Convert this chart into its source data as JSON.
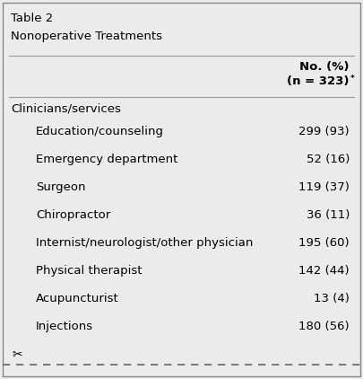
{
  "title_line1": "Table 2",
  "title_line2": "Nonoperative Treatments",
  "col_header_line1": "No. (%)",
  "col_header_line2": "(n = 323)",
  "col_header_superscript": "*",
  "section_header": "Clinicians/services",
  "rows": [
    {
      "label": "Education/counseling",
      "value": "299 (93)"
    },
    {
      "label": "Emergency department",
      "value": "52 (16)"
    },
    {
      "label": "Surgeon",
      "value": "119 (37)"
    },
    {
      "label": "Chiropractor",
      "value": "36 (11)"
    },
    {
      "label": "Internist/neurologist/other physician",
      "value": "195 (60)"
    },
    {
      "label": "Physical therapist",
      "value": "142 (44)"
    },
    {
      "label": "Acupuncturist",
      "value": "13 (4)"
    },
    {
      "label": "Injections",
      "value": "180 (56)"
    }
  ],
  "bg_color": "#ebebeb",
  "border_color": "#888888",
  "text_color": "#000000",
  "dashed_line_color": "#666666",
  "font_size": 9.5
}
